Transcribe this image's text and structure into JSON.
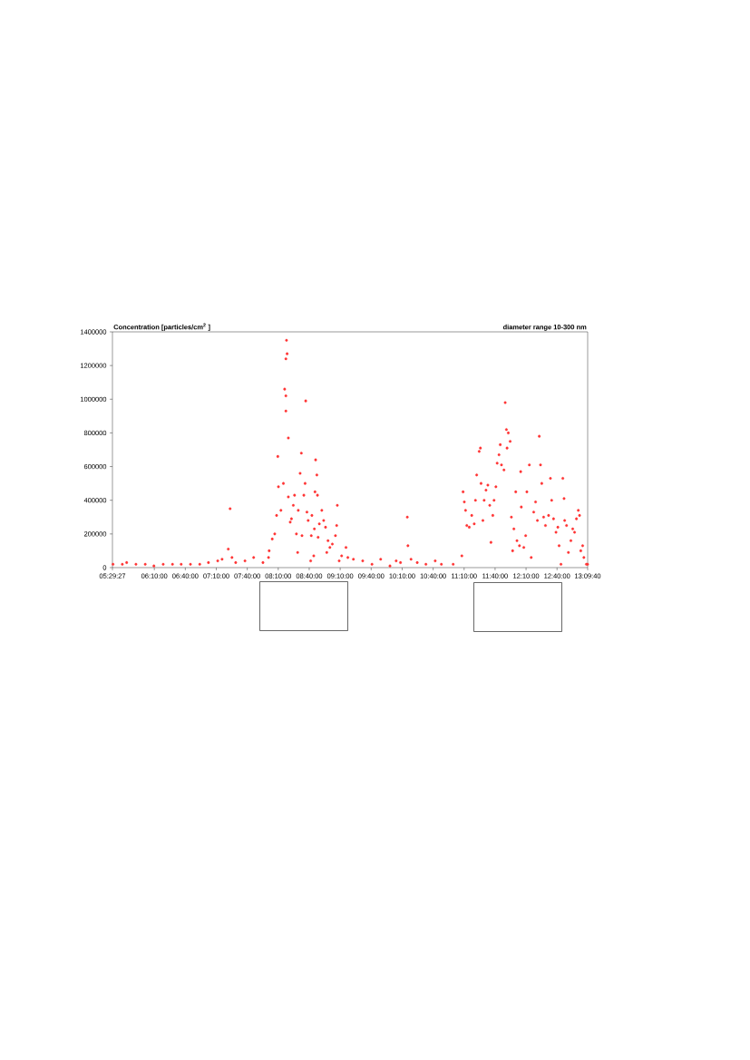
{
  "chart_data": {
    "type": "scatter",
    "ylabel": "Concentration [particles/cm$^{2}$ ]",
    "annotations": [
      "diameter range 10-300 nm"
    ],
    "xlim": [
      5.4908,
      13.1611
    ],
    "xticks": [
      {
        "value": 5.4908,
        "label": "05:29:27"
      },
      {
        "value": 6.1667,
        "label": "06:10:00"
      },
      {
        "value": 6.6667,
        "label": "06:40:00"
      },
      {
        "value": 7.1667,
        "label": "07:10:00"
      },
      {
        "value": 7.6667,
        "label": "07:40:00"
      },
      {
        "value": 8.1667,
        "label": "08:10:00"
      },
      {
        "value": 8.6667,
        "label": "08:40:00"
      },
      {
        "value": 9.1667,
        "label": "09:10:00"
      },
      {
        "value": 9.6667,
        "label": "09:40:00"
      },
      {
        "value": 10.1667,
        "label": "10:10:00"
      },
      {
        "value": 10.6667,
        "label": "10:40:00"
      },
      {
        "value": 11.1667,
        "label": "11:10:00"
      },
      {
        "value": 11.6667,
        "label": "11:40:00"
      },
      {
        "value": 12.1667,
        "label": "12:10:00"
      },
      {
        "value": 12.6667,
        "label": "12:40:00"
      },
      {
        "value": 13.1611,
        "label": "13:09:40"
      }
    ],
    "ylim": [
      0,
      1400000
    ],
    "yticks": [
      0,
      200000,
      400000,
      600000,
      800000,
      1000000,
      1200000,
      1400000
    ],
    "grid": false,
    "marker": "circle",
    "series": [
      {
        "color": "#ff3333",
        "x": [
          5.5,
          5.65,
          5.72,
          5.87,
          6.02,
          6.16,
          6.31,
          6.46,
          6.6,
          6.75,
          6.9,
          7.04,
          7.19,
          7.26,
          7.36,
          7.39,
          7.42,
          7.48,
          7.63,
          7.77,
          7.92,
          8.01,
          8.02,
          8.07,
          8.11,
          8.14,
          8.16,
          8.17,
          8.21,
          8.25,
          8.27,
          8.29,
          8.3,
          8.31,
          8.29,
          8.29,
          8.33,
          8.33,
          8.36,
          8.38,
          8.41,
          8.43,
          8.46,
          8.48,
          8.49,
          8.52,
          8.54,
          8.55,
          8.58,
          8.6,
          8.61,
          8.63,
          8.65,
          8.69,
          8.7,
          8.71,
          8.74,
          8.75,
          8.76,
          8.77,
          8.79,
          8.8,
          8.81,
          8.83,
          8.87,
          8.9,
          8.93,
          8.95,
          8.97,
          9.0,
          9.04,
          9.09,
          9.11,
          9.12,
          9.15,
          9.19,
          9.26,
          9.29,
          9.38,
          9.53,
          9.68,
          9.82,
          9.97,
          10.07,
          10.14,
          10.25,
          10.26,
          10.31,
          10.41,
          10.55,
          10.7,
          10.8,
          10.99,
          11.13,
          11.15,
          11.17,
          11.19,
          11.21,
          11.25,
          11.29,
          11.33,
          11.35,
          11.37,
          11.41,
          11.43,
          11.44,
          11.47,
          11.49,
          11.52,
          11.55,
          11.58,
          11.6,
          11.63,
          11.65,
          11.68,
          11.7,
          11.73,
          11.75,
          11.77,
          11.81,
          11.83,
          11.85,
          11.86,
          11.88,
          11.91,
          11.93,
          11.95,
          11.97,
          12.0,
          12.02,
          12.06,
          12.08,
          12.09,
          12.13,
          12.16,
          12.18,
          12.22,
          12.25,
          12.29,
          12.32,
          12.35,
          12.38,
          12.4,
          12.42,
          12.45,
          12.48,
          12.53,
          12.56,
          12.58,
          12.61,
          12.65,
          12.68,
          12.7,
          12.73,
          12.76,
          12.78,
          12.79,
          12.82,
          12.85,
          12.89,
          12.92,
          12.95,
          12.98,
          13.01,
          13.03,
          13.05,
          13.08,
          13.1,
          13.14,
          13.16
        ],
        "values": [
          20000,
          20000,
          30000,
          20000,
          20000,
          10000,
          20000,
          20000,
          20000,
          20000,
          20000,
          30000,
          40000,
          50000,
          110000,
          350000,
          60000,
          30000,
          40000,
          60000,
          30000,
          60000,
          100000,
          170000,
          200000,
          310000,
          660000,
          480000,
          340000,
          500000,
          1060000,
          1240000,
          1350000,
          1270000,
          930000,
          1020000,
          770000,
          420000,
          270000,
          290000,
          370000,
          430000,
          200000,
          90000,
          340000,
          560000,
          680000,
          190000,
          430000,
          500000,
          990000,
          330000,
          280000,
          40000,
          190000,
          310000,
          70000,
          230000,
          450000,
          640000,
          550000,
          430000,
          180000,
          260000,
          340000,
          280000,
          240000,
          90000,
          160000,
          120000,
          140000,
          190000,
          250000,
          370000,
          40000,
          70000,
          120000,
          60000,
          50000,
          40000,
          20000,
          50000,
          10000,
          40000,
          30000,
          300000,
          130000,
          50000,
          30000,
          20000,
          40000,
          20000,
          20000,
          70000,
          450000,
          390000,
          340000,
          250000,
          240000,
          310000,
          260000,
          400000,
          550000,
          690000,
          710000,
          500000,
          280000,
          400000,
          460000,
          490000,
          370000,
          150000,
          310000,
          400000,
          480000,
          620000,
          670000,
          730000,
          610000,
          580000,
          980000,
          820000,
          710000,
          800000,
          750000,
          300000,
          100000,
          230000,
          450000,
          160000,
          130000,
          570000,
          360000,
          120000,
          190000,
          450000,
          610000,
          60000,
          330000,
          390000,
          280000,
          780000,
          610000,
          500000,
          300000,
          250000,
          310000,
          530000,
          400000,
          290000,
          210000,
          240000,
          130000,
          20000,
          530000,
          410000,
          280000,
          250000,
          90000,
          160000,
          230000,
          210000,
          290000,
          340000,
          310000,
          100000,
          130000,
          60000,
          20000,
          20000
        ]
      }
    ]
  }
}
